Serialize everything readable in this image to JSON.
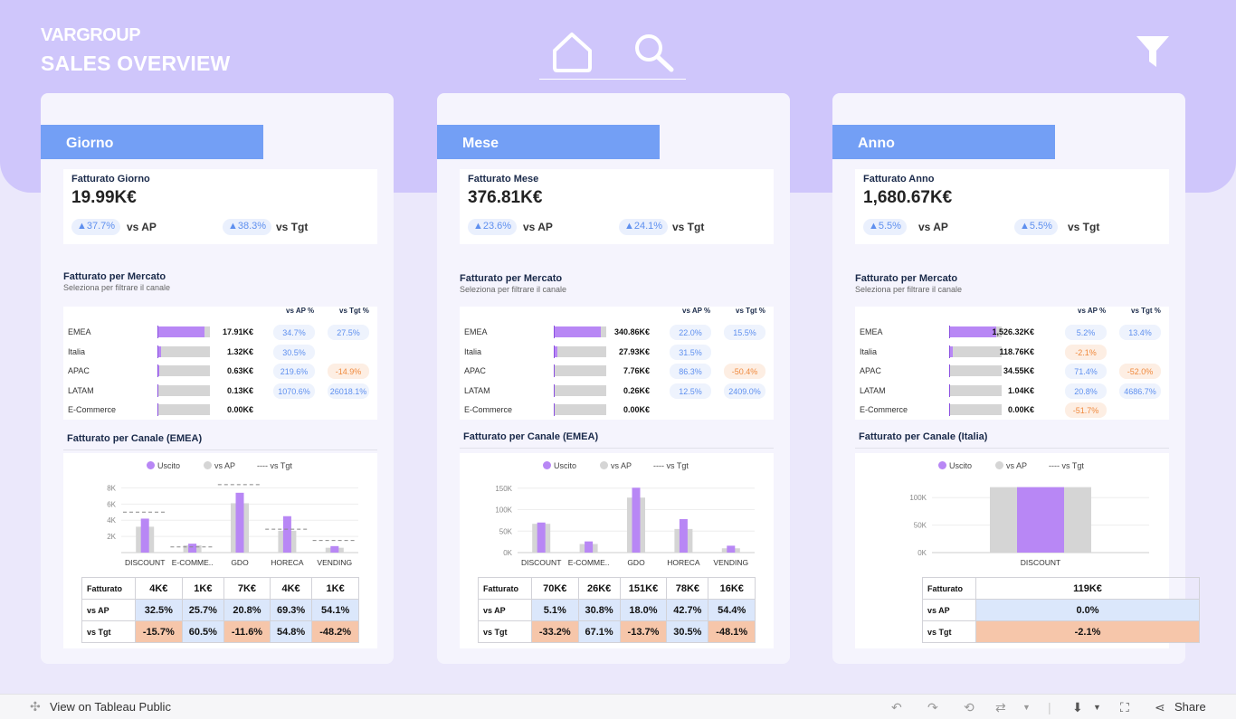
{
  "header": {
    "logo": "VARGROUP",
    "title": "SALES OVERVIEW"
  },
  "legend": {
    "a": "Uscito",
    "b": "vs AP",
    "c": "---- vs Tgt"
  },
  "labels": {
    "mercato_title": "Fatturato per Mercato",
    "mercato_sub": "Seleziona per filtrare il canale",
    "col_ap": "vs AP %",
    "col_tgt": "vs Tgt %",
    "vs_ap": "vs AP",
    "vs_tgt": "vs Tgt",
    "row_fatt": "Fatturato",
    "row_ap": "vs AP",
    "row_tgt": "vs Tgt"
  },
  "colors": {
    "accent": "#739ff5",
    "purple": "#b887f5",
    "hero": "#cfc6fb"
  },
  "cards": [
    {
      "period": "Giorno",
      "kpi_label": "Fatturato Giorno",
      "kpi_value": "19.99K€",
      "ap": "▲37.7%",
      "tgt": "▲38.3%",
      "markets": [
        {
          "name": "EMEA",
          "amount": "17.91K€",
          "ap": "34.7%",
          "tgt": "27.5%",
          "share": 0.9,
          "ap_neg": false,
          "tgt_neg": false
        },
        {
          "name": "Italia",
          "amount": "1.32K€",
          "ap": "30.5%",
          "tgt": "",
          "share": 0.07,
          "ap_neg": false,
          "tgt_neg": false
        },
        {
          "name": "APAC",
          "amount": "0.63K€",
          "ap": "219.6%",
          "tgt": "-14.9%",
          "share": 0.03,
          "ap_neg": false,
          "tgt_neg": true
        },
        {
          "name": "LATAM",
          "amount": "0.13K€",
          "ap": "1070.6%",
          "tgt": "26018.1%",
          "share": 0.01,
          "ap_neg": false,
          "tgt_neg": false
        },
        {
          "name": "E-Commerce",
          "amount": "0.00K€",
          "ap": "",
          "tgt": "",
          "share": 0.0,
          "ap_neg": false,
          "tgt_neg": false
        }
      ],
      "canale_title": "Fatturato per Canale (EMEA)",
      "chart_data": {
        "type": "bar",
        "categories": [
          "DISCOUNT",
          "E-COMME..",
          "GDO",
          "HORECA",
          "VENDING"
        ],
        "series": [
          {
            "name": "Uscito",
            "values": [
              4.2,
              1.1,
              7.4,
              4.5,
              0.8
            ]
          },
          {
            "name": "vs AP",
            "values": [
              3.2,
              0.9,
              6.1,
              2.7,
              0.6
            ]
          },
          {
            "name": "vs Tgt",
            "values": [
              5.0,
              0.7,
              8.4,
              2.9,
              1.5
            ]
          }
        ],
        "yticks": [
          "8K",
          "6K",
          "4K",
          "2K"
        ],
        "ymax": 8.5
      },
      "table": {
        "fatt": [
          "4K€",
          "1K€",
          "7K€",
          "4K€",
          "1K€"
        ],
        "ap": [
          "32.5%",
          "25.7%",
          "20.8%",
          "69.3%",
          "54.1%"
        ],
        "tgt": [
          "-15.7%",
          "60.5%",
          "-11.6%",
          "54.8%",
          "-48.2%"
        ],
        "tgt_neg": [
          true,
          false,
          true,
          false,
          true
        ]
      }
    },
    {
      "period": "Mese",
      "kpi_label": "Fatturato Mese",
      "kpi_value": "376.81K€",
      "ap": "▲23.6%",
      "tgt": "▲24.1%",
      "markets": [
        {
          "name": "EMEA",
          "amount": "340.86K€",
          "ap": "22.0%",
          "tgt": "15.5%",
          "share": 0.9,
          "ap_neg": false,
          "tgt_neg": false
        },
        {
          "name": "Italia",
          "amount": "27.93K€",
          "ap": "31.5%",
          "tgt": "",
          "share": 0.07,
          "ap_neg": false,
          "tgt_neg": false
        },
        {
          "name": "APAC",
          "amount": "7.76K€",
          "ap": "86.3%",
          "tgt": "-50.4%",
          "share": 0.02,
          "ap_neg": false,
          "tgt_neg": true
        },
        {
          "name": "LATAM",
          "amount": "0.26K€",
          "ap": "12.5%",
          "tgt": "2409.0%",
          "share": 0.01,
          "ap_neg": false,
          "tgt_neg": false
        },
        {
          "name": "E-Commerce",
          "amount": "0.00K€",
          "ap": "",
          "tgt": "",
          "share": 0.0,
          "ap_neg": false,
          "tgt_neg": false
        }
      ],
      "canale_title": "Fatturato per Canale (EMEA)",
      "chart_data": {
        "type": "bar",
        "categories": [
          "DISCOUNT",
          "E-COMME..",
          "GDO",
          "HORECA",
          "VENDING"
        ],
        "series": [
          {
            "name": "Uscito",
            "values": [
              70,
              26,
              151,
              78,
              16
            ]
          },
          {
            "name": "vs AP",
            "values": [
              67,
              20,
              128,
              55,
              10
            ]
          }
        ],
        "yticks": [
          "150K",
          "100K",
          "50K",
          "0K"
        ],
        "ymax": 160
      },
      "table": {
        "fatt": [
          "70K€",
          "26K€",
          "151K€",
          "78K€",
          "16K€"
        ],
        "ap": [
          "5.1%",
          "30.8%",
          "18.0%",
          "42.7%",
          "54.4%"
        ],
        "tgt": [
          "-33.2%",
          "67.1%",
          "-13.7%",
          "30.5%",
          "-48.1%"
        ],
        "tgt_neg": [
          true,
          false,
          true,
          false,
          true
        ]
      }
    },
    {
      "period": "Anno",
      "kpi_label": "Fatturato Anno",
      "kpi_value": "1,680.67K€",
      "ap": "▲5.5%",
      "tgt": "▲5.5%",
      "markets": [
        {
          "name": "EMEA",
          "amount": "1,526.32K€",
          "ap": "5.2%",
          "tgt": "13.4%",
          "share": 0.9,
          "ap_neg": false,
          "tgt_neg": false
        },
        {
          "name": "Italia",
          "amount": "118.76K€",
          "ap": "-2.1%",
          "tgt": "",
          "share": 0.07,
          "ap_neg": true,
          "tgt_neg": false
        },
        {
          "name": "APAC",
          "amount": "34.55K€",
          "ap": "71.4%",
          "tgt": "-52.0%",
          "share": 0.02,
          "ap_neg": false,
          "tgt_neg": true
        },
        {
          "name": "LATAM",
          "amount": "1.04K€",
          "ap": "20.8%",
          "tgt": "4686.7%",
          "share": 0.01,
          "ap_neg": false,
          "tgt_neg": false
        },
        {
          "name": "E-Commerce",
          "amount": "0.00K€",
          "ap": "-51.7%",
          "tgt": "",
          "share": 0.0,
          "ap_neg": true,
          "tgt_neg": false
        }
      ],
      "canale_title": "Fatturato per Canale (Italia)",
      "chart_data": {
        "type": "bar",
        "categories": [
          "DISCOUNT"
        ],
        "series": [
          {
            "name": "Uscito",
            "values": [
              119
            ]
          },
          {
            "name": "vs AP",
            "values": [
              119
            ]
          }
        ],
        "yticks": [
          "100K",
          "50K",
          "0K"
        ],
        "ymax": 125
      },
      "table": {
        "fatt": [
          "119K€"
        ],
        "ap": [
          "0.0%"
        ],
        "tgt": [
          "-2.1%"
        ],
        "tgt_neg": [
          true
        ]
      }
    }
  ],
  "footer": {
    "view": "View on Tableau Public",
    "share": "Share"
  }
}
